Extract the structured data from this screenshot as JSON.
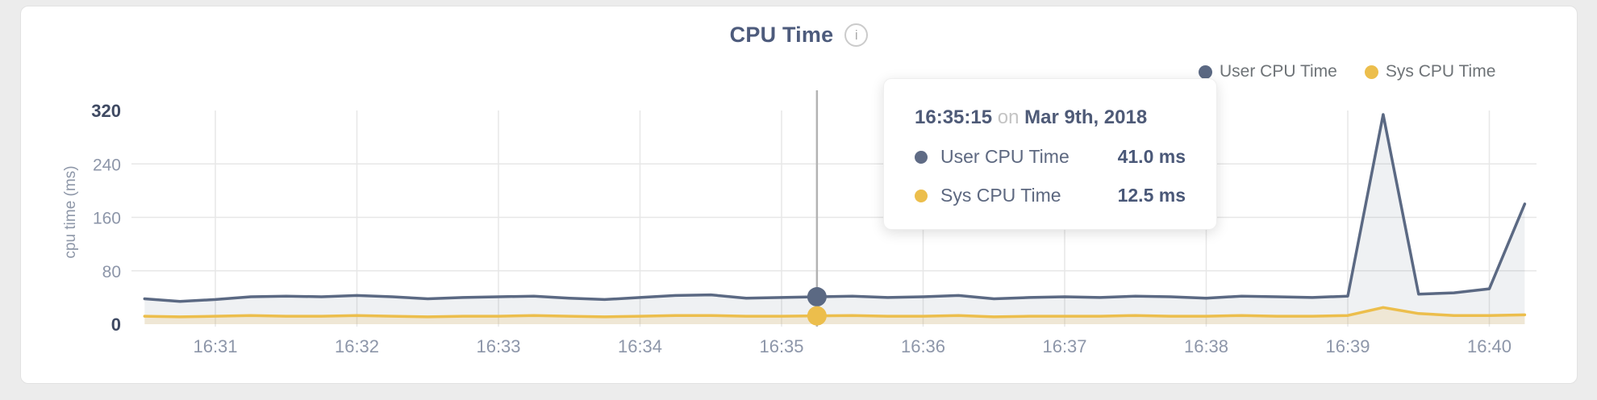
{
  "title": "CPU Time",
  "info_icon": "i",
  "ylabel": "cpu time (ms)",
  "legend": {
    "items": [
      {
        "label": "User CPU Time",
        "color": "#5b6983"
      },
      {
        "label": "Sys CPU Time",
        "color": "#ecbe4c"
      }
    ]
  },
  "tooltip": {
    "time": "16:35:15",
    "connector": "on",
    "date": "Mar 9th, 2018",
    "rows": [
      {
        "label": "User CPU Time",
        "value": "41.0 ms",
        "color": "#5f6b85"
      },
      {
        "label": "Sys CPU Time",
        "value": "12.5 ms",
        "color": "#ecbe4c"
      }
    ]
  },
  "chart_data": {
    "type": "area",
    "title": "CPU Time",
    "xlabel": "",
    "ylabel": "cpu time (ms)",
    "ylim": [
      0,
      320
    ],
    "y_ticks": [
      0,
      80,
      160,
      240,
      320
    ],
    "x_ticks": [
      "16:31",
      "16:32",
      "16:33",
      "16:34",
      "16:35",
      "16:36",
      "16:37",
      "16:38",
      "16:39",
      "16:40"
    ],
    "grid": true,
    "legend_position": "top-right",
    "x": [
      "16:30:30",
      "16:30:45",
      "16:31:00",
      "16:31:15",
      "16:31:30",
      "16:31:45",
      "16:32:00",
      "16:32:15",
      "16:32:30",
      "16:32:45",
      "16:33:00",
      "16:33:15",
      "16:33:30",
      "16:33:45",
      "16:34:00",
      "16:34:15",
      "16:34:30",
      "16:34:45",
      "16:35:00",
      "16:35:15",
      "16:35:30",
      "16:35:45",
      "16:36:00",
      "16:36:15",
      "16:36:30",
      "16:36:45",
      "16:37:00",
      "16:37:15",
      "16:37:30",
      "16:37:45",
      "16:38:00",
      "16:38:15",
      "16:38:30",
      "16:38:45",
      "16:39:00",
      "16:39:15",
      "16:39:30",
      "16:39:45",
      "16:40:00",
      "16:40:15"
    ],
    "series": [
      {
        "name": "User CPU Time",
        "color": "#5b6983",
        "fill": "rgba(99,113,141,0.10)",
        "values": [
          38,
          34,
          37,
          41,
          42,
          41,
          43,
          41,
          38,
          40,
          41,
          42,
          39,
          37,
          40,
          43,
          44,
          39,
          40,
          41,
          42,
          40,
          41,
          43,
          38,
          40,
          41,
          40,
          42,
          41,
          39,
          42,
          41,
          40,
          42,
          314,
          45,
          47,
          53,
          180
        ]
      },
      {
        "name": "Sys CPU Time",
        "color": "#ecbe4c",
        "fill": "rgba(236,190,76,0.18)",
        "values": [
          12,
          11,
          12,
          13,
          12,
          12,
          13,
          12,
          11,
          12,
          12,
          13,
          12,
          11,
          12,
          13,
          13,
          12,
          12,
          12.5,
          13,
          12,
          12,
          13,
          11,
          12,
          12,
          12,
          13,
          12,
          12,
          13,
          12,
          12,
          13,
          25,
          16,
          13,
          13,
          14
        ]
      }
    ],
    "hover": {
      "x": "16:35:15",
      "user_value": 41.0,
      "sys_value": 12.5
    },
    "colors": {
      "grid": "#e7e7e7",
      "hover_line": "#b3b3b3",
      "tick_label": "#8d96a9",
      "tick_label_extreme": "#3f4a63"
    }
  }
}
